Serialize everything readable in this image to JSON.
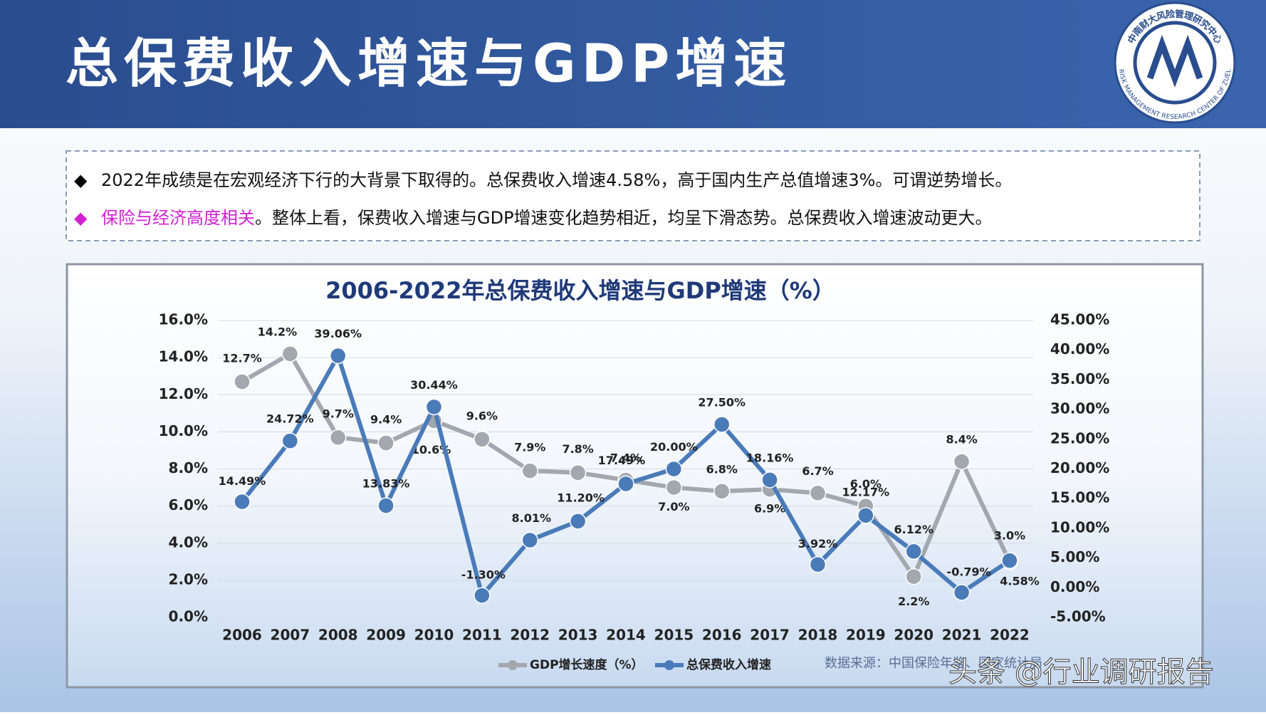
{
  "header": {
    "title": "总保费收入增速与GDP增速"
  },
  "logo": {
    "cn": "中南财大风险管理研究中心",
    "en": "RISK MANAGEMENT RESEARCH CENTER OF ZUEL"
  },
  "bullets": [
    {
      "marker": "◆",
      "text": "2022年成绩是在宏观经济下行的大背景下取得的。总保费收入增速4.58%，高于国内生产总值增速3%。可谓逆势增长。"
    },
    {
      "marker": "◆",
      "highlight": "保险与经济高度相关",
      "text": "。整体上看，保费收入增速与GDP增速变化趋势相近，均呈下滑态势。总保费收入增速波动更大。"
    }
  ],
  "chart_data": {
    "type": "line",
    "title": "2006-2022年总保费收入增速与GDP增速（%）",
    "categories": [
      "2006",
      "2007",
      "2008",
      "2009",
      "2010",
      "2011",
      "2012",
      "2013",
      "2014",
      "2015",
      "2016",
      "2017",
      "2018",
      "2019",
      "2020",
      "2021",
      "2022"
    ],
    "series": [
      {
        "name": "GDP增长速度（%）",
        "color": "#a3a7ae",
        "values": [
          12.7,
          14.2,
          9.7,
          9.4,
          10.6,
          9.6,
          7.9,
          7.8,
          7.4,
          7.0,
          6.8,
          6.9,
          6.7,
          6.0,
          2.2,
          8.4,
          3.0
        ],
        "value_labels": [
          "12.7%",
          "14.2%",
          "9.7%",
          "9.4%",
          "10.6%",
          "9.6%",
          "7.9%",
          "7.8%",
          "7.4%",
          "7.0%",
          "6.8%",
          "6.9%",
          "6.7%",
          "6.0%",
          "2.2%",
          "8.4%",
          "3.0%"
        ]
      },
      {
        "name": "总保费收入增速",
        "color": "#4a7bb9",
        "axis": "y2",
        "values": [
          14.49,
          24.72,
          39.06,
          13.83,
          30.44,
          -1.3,
          8.01,
          11.2,
          17.49,
          20.0,
          27.5,
          18.16,
          3.92,
          12.17,
          6.12,
          -0.79,
          4.58
        ],
        "value_labels": [
          "14.49%",
          "24.72%",
          "39.06%",
          "13.83%",
          "30.44%",
          "-1.30%",
          "8.01%",
          "11.20%",
          "17.49%",
          "20.00%",
          "27.50%",
          "18.16%",
          "3.92%",
          "12.17%",
          "6.12%",
          "-0.79%",
          "4.58%"
        ]
      }
    ],
    "ylim": [
      0,
      16
    ],
    "yticks": [
      {
        "value": 0,
        "label": "0.0%"
      },
      {
        "value": 2,
        "label": "2.0%"
      },
      {
        "value": 4,
        "label": "4.0%"
      },
      {
        "value": 6,
        "label": "6.0%"
      },
      {
        "value": 8,
        "label": "8.0%"
      },
      {
        "value": 10,
        "label": "10.0%"
      },
      {
        "value": 12,
        "label": "12.0%"
      },
      {
        "value": 14,
        "label": "14.0%"
      },
      {
        "value": 16,
        "label": "16.0%"
      }
    ],
    "y2lim": [
      -5,
      45
    ],
    "y2ticks": [
      {
        "value": -5,
        "label": "-5.00%"
      },
      {
        "value": 0,
        "label": "0.00%"
      },
      {
        "value": 5,
        "label": "5.00%"
      },
      {
        "value": 10,
        "label": "10.00%"
      },
      {
        "value": 15,
        "label": "15.00%"
      },
      {
        "value": 20,
        "label": "20.00%"
      },
      {
        "value": 25,
        "label": "25.00%"
      },
      {
        "value": 30,
        "label": "30.00%"
      },
      {
        "value": 35,
        "label": "35.00%"
      },
      {
        "value": 40,
        "label": "40.00%"
      },
      {
        "value": 45,
        "label": "45.00%"
      }
    ],
    "grid": true,
    "source": "数据来源：中国保险年鉴、国家统计局"
  },
  "watermark": "头条 @行业调研报告"
}
